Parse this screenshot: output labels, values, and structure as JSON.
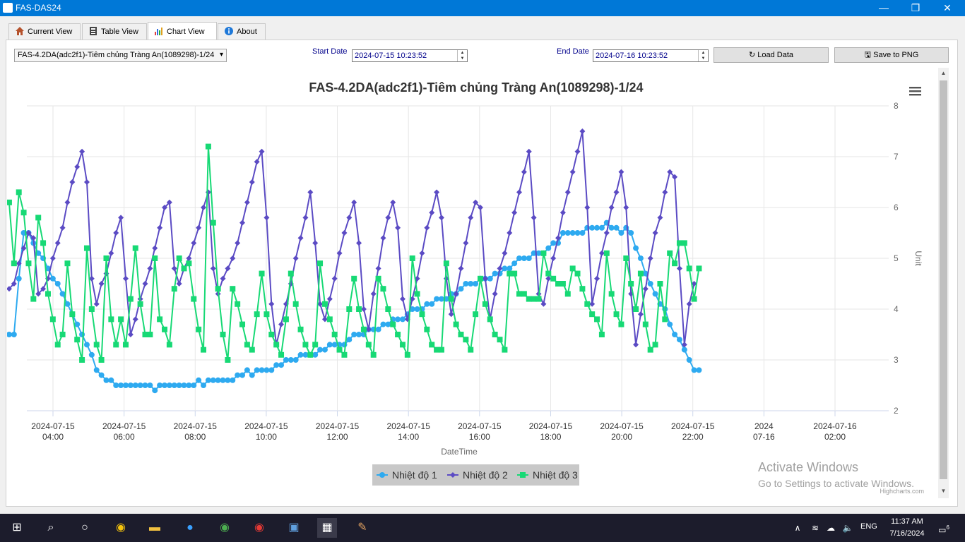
{
  "window": {
    "title": "FAS-DAS24",
    "minimize": "—",
    "restore": "❐",
    "close": "✕"
  },
  "tabs": [
    {
      "label": "Current View",
      "icon": "house-icon"
    },
    {
      "label": "Table View",
      "icon": "table-icon"
    },
    {
      "label": "Chart View",
      "icon": "chart-icon",
      "active": true
    },
    {
      "label": "About",
      "icon": "info-icon"
    }
  ],
  "controls": {
    "device_select": "FAS-4.2DA(adc2f1)-Tiêm chủng Tràng An(1089298)-1/24",
    "start_label": "Start Date",
    "start_value": "2024-07-15 10:23:52",
    "end_label": "End Date",
    "end_value": "2024-07-16 10:23:52",
    "load_button": "Load Data",
    "save_button": "Save to PNG"
  },
  "watermark": {
    "line1": "Activate Windows",
    "line2": "Go to Settings to activate Windows."
  },
  "taskbar": {
    "time": "11:37 AM",
    "date": "7/16/2024",
    "lang": "ENG",
    "notifications": "6"
  },
  "chart_data": {
    "type": "line",
    "title": "FAS-4.2DA(adc2f1)-Tiêm chủng Tràng An(1089298)-1/24",
    "xlabel": "DateTime",
    "ylabel": "Unit",
    "ylim": [
      2,
      8
    ],
    "yticks": [
      2,
      3,
      4,
      5,
      6,
      7,
      8
    ],
    "x_start": "2024-07-15 02:46",
    "x_step_minutes": 8.2,
    "xticks": [
      [
        "2024-07-15",
        "04:00"
      ],
      [
        "2024-07-15",
        "06:00"
      ],
      [
        "2024-07-15",
        "08:00"
      ],
      [
        "2024-07-15",
        "10:00"
      ],
      [
        "2024-07-15",
        "12:00"
      ],
      [
        "2024-07-15",
        "14:00"
      ],
      [
        "2024-07-15",
        "16:00"
      ],
      [
        "2024-07-15",
        "18:00"
      ],
      [
        "2024-07-15",
        "20:00"
      ],
      [
        "2024-07-15",
        "22:00"
      ],
      [
        "2024",
        "07-16"
      ],
      [
        "2024-07-16",
        "02:00"
      ]
    ],
    "xtick_hours": [
      4,
      6,
      8,
      10,
      12,
      14,
      16,
      18,
      20,
      22,
      24,
      26
    ],
    "credit": "Highcharts.com",
    "legend_position": "bottom-center",
    "series": [
      {
        "name": "Nhiệt độ 1",
        "color": "#2eaaf0",
        "marker": "circle",
        "values": [
          3.5,
          3.5,
          4.6,
          5.5,
          5.5,
          5.3,
          5.1,
          5,
          4.8,
          4.6,
          4.5,
          4.3,
          4.1,
          3.9,
          3.7,
          3.5,
          3.3,
          3.1,
          2.8,
          2.7,
          2.6,
          2.6,
          2.5,
          2.5,
          2.5,
          2.5,
          2.5,
          2.5,
          2.5,
          2.5,
          2.4,
          2.5,
          2.5,
          2.5,
          2.5,
          2.5,
          2.5,
          2.5,
          2.5,
          2.6,
          2.5,
          2.6,
          2.6,
          2.6,
          2.6,
          2.6,
          2.6,
          2.7,
          2.7,
          2.8,
          2.7,
          2.8,
          2.8,
          2.8,
          2.8,
          2.9,
          2.9,
          3,
          3,
          3,
          3.1,
          3.1,
          3.1,
          3.1,
          3.2,
          3.2,
          3.3,
          3.3,
          3.3,
          3.3,
          3.4,
          3.5,
          3.5,
          3.5,
          3.6,
          3.6,
          3.6,
          3.7,
          3.7,
          3.8,
          3.8,
          3.8,
          3.9,
          4,
          4,
          4,
          4.1,
          4.1,
          4.2,
          4.2,
          4.2,
          4.3,
          4.3,
          4.4,
          4.5,
          4.5,
          4.5,
          4.6,
          4.6,
          4.6,
          4.7,
          4.7,
          4.8,
          4.8,
          4.9,
          5,
          5,
          5,
          5.1,
          5.1,
          5.1,
          5.2,
          5.3,
          5.3,
          5.5,
          5.5,
          5.5,
          5.5,
          5.5,
          5.6,
          5.6,
          5.6,
          5.6,
          5.7,
          5.6,
          5.6,
          5.5,
          5.6,
          5.5,
          5.2,
          5,
          4.7,
          4.5,
          4.3,
          4.1,
          4,
          3.7,
          3.5,
          3.4,
          3.2,
          3,
          2.8,
          2.8
        ]
      },
      {
        "name": "Nhiệt độ 2",
        "color": "#5b4bc4",
        "marker": "diamond",
        "values": [
          4.4,
          4.5,
          4.9,
          5.2,
          5.5,
          5.4,
          4.3,
          4.4,
          4.6,
          5.0,
          5.3,
          5.6,
          6.1,
          6.5,
          6.8,
          7.1,
          6.5,
          4.6,
          4.1,
          4.5,
          4.7,
          5.1,
          5.5,
          5.8,
          4.6,
          3.5,
          3.8,
          4.2,
          4.5,
          4.8,
          5.2,
          5.6,
          6.0,
          6.1,
          4.8,
          4.5,
          4.8,
          5.0,
          5.3,
          5.6,
          6.0,
          6.3,
          4.8,
          4.3,
          4.6,
          4.8,
          5.0,
          5.3,
          5.7,
          6.1,
          6.5,
          6.9,
          7.1,
          5.8,
          4.1,
          3.3,
          3.7,
          4.1,
          4.5,
          5.0,
          5.4,
          5.8,
          6.3,
          5.3,
          4.1,
          3.8,
          4.2,
          4.6,
          5.1,
          5.5,
          5.8,
          6.1,
          5.3,
          4.0,
          3.6,
          4.3,
          4.8,
          5.4,
          5.8,
          6.1,
          5.6,
          4.2,
          3.8,
          4.2,
          4.6,
          5.1,
          5.6,
          5.9,
          6.3,
          5.8,
          4.6,
          3.9,
          4.3,
          4.8,
          5.3,
          5.8,
          6.1,
          6.0,
          4.6,
          3.8,
          4.3,
          4.8,
          5.1,
          5.5,
          5.9,
          6.3,
          6.7,
          7.1,
          5.8,
          4.3,
          4.1,
          4.6,
          5.0,
          5.4,
          5.9,
          6.3,
          6.7,
          7.1,
          7.5,
          6.0,
          4.1,
          4.6,
          5.1,
          5.5,
          6.0,
          6.3,
          6.7,
          6.0,
          4.3,
          3.3,
          3.9,
          4.4,
          5.0,
          5.5,
          5.8,
          6.3,
          6.7,
          6.6,
          4.8,
          3.3,
          4.1,
          4.5
        ]
      },
      {
        "name": "Nhiệt độ 3",
        "color": "#17d975",
        "marker": "square",
        "values": [
          6.1,
          4.9,
          6.3,
          5.9,
          4.9,
          4.2,
          5.8,
          5.3,
          4.3,
          3.8,
          3.3,
          3.5,
          4.9,
          3.9,
          3.4,
          3.0,
          5.2,
          4.0,
          3.3,
          3.0,
          5.0,
          3.8,
          3.3,
          3.8,
          3.3,
          4.2,
          5.2,
          4.1,
          3.5,
          3.5,
          5.0,
          3.8,
          3.6,
          3.3,
          4.4,
          5.0,
          4.8,
          4.9,
          4.2,
          3.6,
          3.2,
          7.2,
          5.7,
          4.4,
          3.5,
          3.0,
          4.4,
          4.1,
          3.7,
          3.3,
          3.2,
          3.9,
          4.7,
          3.9,
          3.5,
          3.3,
          3.1,
          3.8,
          4.7,
          4.1,
          3.6,
          3.3,
          3.1,
          3.3,
          4.9,
          4.1,
          3.8,
          3.5,
          3.2,
          3.1,
          4.0,
          4.6,
          4.0,
          3.6,
          3.3,
          3.1,
          4.6,
          4.4,
          4.0,
          3.7,
          3.5,
          3.3,
          3.1,
          5.0,
          4.3,
          3.9,
          3.6,
          3.3,
          3.2,
          3.2,
          4.9,
          4.2,
          3.7,
          3.5,
          3.4,
          3.2,
          3.9,
          4.6,
          4.1,
          3.8,
          3.5,
          3.4,
          3.2,
          4.7,
          4.7,
          4.3,
          4.3,
          4.2,
          4.2,
          4.2,
          5.1,
          4.7,
          4.6,
          4.5,
          4.5,
          4.3,
          4.8,
          4.7,
          4.4,
          4.1,
          3.9,
          3.8,
          3.5,
          5.1,
          4.3,
          3.9,
          3.7,
          5.0,
          4.5,
          4.0,
          4.7,
          3.7,
          3.2,
          3.3,
          4.5,
          3.8,
          5.1,
          4.9,
          5.3,
          5.3,
          4.8,
          4.2,
          4.8
        ]
      }
    ]
  }
}
